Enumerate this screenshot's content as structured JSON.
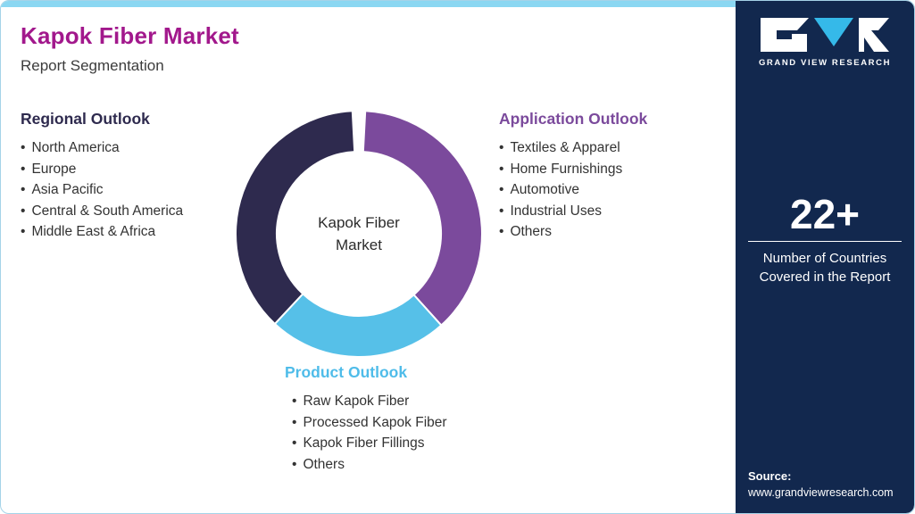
{
  "header": {
    "title": "Kapok Fiber Market",
    "subtitle": "Report Segmentation"
  },
  "sections": {
    "regional": {
      "title": "Regional Outlook",
      "items": [
        "North America",
        "Europe",
        "Asia Pacific",
        "Central & South America",
        "Middle East & Africa"
      ]
    },
    "application": {
      "title": "Application Outlook",
      "items": [
        "Textiles & Apparel",
        "Home Furnishings",
        "Automotive",
        "Industrial Uses",
        "Others"
      ]
    },
    "product": {
      "title": "Product Outlook",
      "items": [
        "Raw Kapok Fiber",
        "Processed Kapok Fiber",
        "Kapok Fiber Fillings",
        "Others"
      ]
    }
  },
  "chart_data": {
    "type": "pie",
    "donut": true,
    "title": "Kapok Fiber Market",
    "center_label": [
      "Kapok Fiber",
      "Market"
    ],
    "legend_position": "none",
    "segments": [
      {
        "label": "Application Outlook",
        "value_pct": 38,
        "color": "#7B4A9C",
        "start_deg": 3,
        "end_deg": 138
      },
      {
        "label": "Product Outlook",
        "value_pct": 24,
        "color": "#56C0E8",
        "start_deg": 138,
        "end_deg": 223
      },
      {
        "label": "Regional Outlook",
        "value_pct": 38,
        "color": "#2E2A4E",
        "start_deg": 223,
        "end_deg": 357
      }
    ]
  },
  "sidebar": {
    "logo": {
      "icon": "gvr-logo",
      "text": "GRAND VIEW RESEARCH"
    },
    "stat": {
      "value": "22+",
      "caption": [
        "Number of Countries",
        "Covered in the Report"
      ]
    },
    "source": {
      "label": "Source:",
      "url": "www.grandviewresearch.com"
    }
  },
  "colors": {
    "title": "#A2188C",
    "top_bar": "#8BD7F2",
    "card_border": "#A5D3E8",
    "sidebar_bg": "#12284E",
    "regional": "#2E2A4E",
    "application": "#7B4A9C",
    "product": "#4FBCE9",
    "body_text": "#333333",
    "logo_accent": "#35B9E9"
  }
}
